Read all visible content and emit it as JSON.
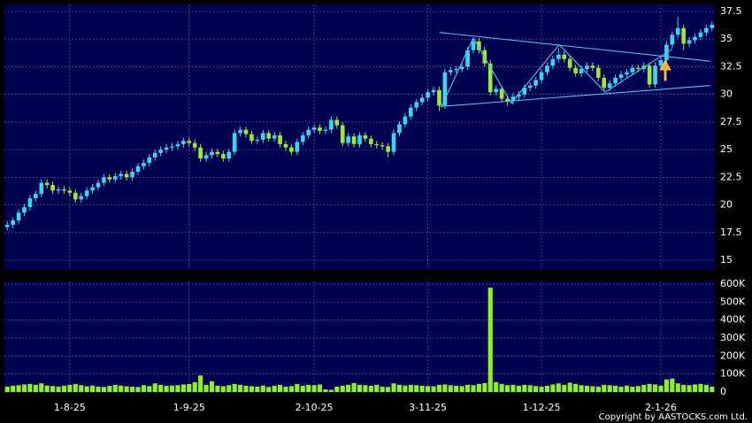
{
  "chart_data": [
    {
      "type": "candlestick",
      "background": "#000050",
      "up_color": "#3ad4f4",
      "down_color": "#9be83a",
      "grid": true,
      "xlim": [
        -0.5,
        124.5
      ],
      "ylim": [
        14.12,
        38.14
      ],
      "yticks": [
        15,
        17.5,
        20,
        22.5,
        25,
        27.5,
        30,
        32.5,
        35,
        37.5
      ],
      "open": [
        18.0,
        18.2,
        18.6,
        19.3,
        19.8,
        20.6,
        21.0,
        22.0,
        21.8,
        21.3,
        21.4,
        21.3,
        21.1,
        20.5,
        20.8,
        21.3,
        21.6,
        22.0,
        22.5,
        22.3,
        22.6,
        22.8,
        22.5,
        23.0,
        23.5,
        23.8,
        24.3,
        24.7,
        25.0,
        25.2,
        25.3,
        25.5,
        25.8,
        25.6,
        25.2,
        24.2,
        24.5,
        24.8,
        24.6,
        24.2,
        24.8,
        26.5,
        26.8,
        26.4,
        25.8,
        25.9,
        26.5,
        26.0,
        26.3,
        25.5,
        25.2,
        24.8,
        25.7,
        26.3,
        26.8,
        27.0,
        26.7,
        26.8,
        27.7,
        27.2,
        25.6,
        26.2,
        25.5,
        26.3,
        26.0,
        25.5,
        25.4,
        25.3,
        24.8,
        26.5,
        27.3,
        28.0,
        28.8,
        29.3,
        29.7,
        30.2,
        30.4,
        29.0,
        32.0,
        32.2,
        32.3,
        32.5,
        34.0,
        34.8,
        34.0,
        32.8,
        30.2,
        30.5,
        29.6,
        29.4,
        29.8,
        30.0,
        30.6,
        30.8,
        31.3,
        32.0,
        32.6,
        33.2,
        33.6,
        33.2,
        32.4,
        31.9,
        32.3,
        32.6,
        32.4,
        31.5,
        30.6,
        31.0,
        31.5,
        31.8,
        32.0,
        32.4,
        32.3,
        32.6,
        30.9,
        32.6,
        33.1,
        34.5,
        35.4,
        36.0,
        34.6,
        34.9,
        35.2,
        35.6,
        36.0
      ],
      "high": [
        18.5,
        18.9,
        19.6,
        20.1,
        20.9,
        21.3,
        22.3,
        22.3,
        22.1,
        21.7,
        21.7,
        21.6,
        21.4,
        21.1,
        21.6,
        21.9,
        22.3,
        22.8,
        22.8,
        22.9,
        23.1,
        23.1,
        23.3,
        23.8,
        24.1,
        24.6,
        25.0,
        25.3,
        25.5,
        25.6,
        25.8,
        26.1,
        26.1,
        25.9,
        25.5,
        24.8,
        25.1,
        25.1,
        24.9,
        25.1,
        26.8,
        27.1,
        27.1,
        26.7,
        26.2,
        26.8,
        26.8,
        26.6,
        26.6,
        25.8,
        25.5,
        26.0,
        26.6,
        27.1,
        27.3,
        27.3,
        27.1,
        28.0,
        28.0,
        27.5,
        26.5,
        26.5,
        26.6,
        26.6,
        26.3,
        25.8,
        25.7,
        25.6,
        26.8,
        27.6,
        28.3,
        29.1,
        29.6,
        30.0,
        30.5,
        30.7,
        30.7,
        32.3,
        32.5,
        32.6,
        32.8,
        34.3,
        35.1,
        35.1,
        34.3,
        33.1,
        30.8,
        30.8,
        29.9,
        30.1,
        30.3,
        30.9,
        31.1,
        31.6,
        32.3,
        32.9,
        33.5,
        34.2,
        33.9,
        33.5,
        32.7,
        32.6,
        32.9,
        32.9,
        32.7,
        31.8,
        31.3,
        31.8,
        32.1,
        32.3,
        32.7,
        32.7,
        32.9,
        32.9,
        32.9,
        33.4,
        34.8,
        35.7,
        37.0,
        36.3,
        35.2,
        35.5,
        35.9,
        36.3,
        36.6
      ],
      "low": [
        17.7,
        17.9,
        18.3,
        19.0,
        19.5,
        20.3,
        20.7,
        21.5,
        21.0,
        21.0,
        21.0,
        20.8,
        20.2,
        20.2,
        20.5,
        21.0,
        21.3,
        21.7,
        22.0,
        22.0,
        22.3,
        22.2,
        22.2,
        22.7,
        23.2,
        23.5,
        24.0,
        24.4,
        24.7,
        24.9,
        25.0,
        25.2,
        25.3,
        24.9,
        23.9,
        23.9,
        24.2,
        24.3,
        23.9,
        23.9,
        24.5,
        26.2,
        26.1,
        25.5,
        25.5,
        25.6,
        25.7,
        25.7,
        25.2,
        24.9,
        24.5,
        24.5,
        25.4,
        26.0,
        26.5,
        26.4,
        26.4,
        26.5,
        26.9,
        25.3,
        25.3,
        25.2,
        25.2,
        25.7,
        25.2,
        25.1,
        25.0,
        24.3,
        24.5,
        26.2,
        27.0,
        27.7,
        28.5,
        29.0,
        29.4,
        29.9,
        28.5,
        28.7,
        31.7,
        31.9,
        32.0,
        32.2,
        33.7,
        33.7,
        32.5,
        29.9,
        29.9,
        29.3,
        29.0,
        29.1,
        29.5,
        29.7,
        30.3,
        30.5,
        31.0,
        31.7,
        32.3,
        32.9,
        32.9,
        32.1,
        31.6,
        31.6,
        32.0,
        32.1,
        31.2,
        30.3,
        30.3,
        30.7,
        31.2,
        31.5,
        31.7,
        32.0,
        32.0,
        30.6,
        30.6,
        32.3,
        32.8,
        34.2,
        35.1,
        34.0,
        34.3,
        34.6,
        34.9,
        35.3,
        35.7
      ],
      "close": [
        18.2,
        18.6,
        19.3,
        19.8,
        20.6,
        21.0,
        22.0,
        21.8,
        21.3,
        21.4,
        21.3,
        21.1,
        20.5,
        20.8,
        21.3,
        21.6,
        22.0,
        22.5,
        22.3,
        22.6,
        22.8,
        22.5,
        23.0,
        23.5,
        23.8,
        24.3,
        24.7,
        25.0,
        25.2,
        25.3,
        25.5,
        25.8,
        25.6,
        25.2,
        24.2,
        24.5,
        24.8,
        24.6,
        24.2,
        24.8,
        26.5,
        26.8,
        26.4,
        25.8,
        25.9,
        26.5,
        26.0,
        26.3,
        25.5,
        25.2,
        24.8,
        25.7,
        26.3,
        26.8,
        27.0,
        26.7,
        26.8,
        27.7,
        27.2,
        25.6,
        26.2,
        25.5,
        26.3,
        26.0,
        25.5,
        25.4,
        25.3,
        24.8,
        26.5,
        27.3,
        28.0,
        28.8,
        29.3,
        29.7,
        30.2,
        30.4,
        29.0,
        32.0,
        32.2,
        32.3,
        32.5,
        34.0,
        34.8,
        34.0,
        32.8,
        30.2,
        30.5,
        29.6,
        29.4,
        29.8,
        30.0,
        30.6,
        30.8,
        31.3,
        32.0,
        32.6,
        33.2,
        33.6,
        33.2,
        32.4,
        31.9,
        32.3,
        32.6,
        32.4,
        31.5,
        30.6,
        31.0,
        31.5,
        31.8,
        32.0,
        32.4,
        32.3,
        32.6,
        30.9,
        32.6,
        33.1,
        34.5,
        35.4,
        36.0,
        34.6,
        34.9,
        35.2,
        35.6,
        36.0,
        36.3
      ],
      "trendline_color": "#4fc3f0",
      "trendlines": [
        {
          "x": [
            76.1,
            123.7
          ],
          "y": [
            35.6,
            33.0
          ]
        },
        {
          "x": [
            76.1,
            123.7
          ],
          "y": [
            28.9,
            30.8
          ]
        },
        {
          "x": [
            76.4,
            82.0,
            88.7,
            97.1,
            105.2,
            117.0
          ],
          "y": [
            28.9,
            35.1,
            29.2,
            34.5,
            30.2,
            34.1
          ]
        }
      ]
    },
    {
      "type": "bar",
      "background": "#000050",
      "color": "#8ef02a",
      "grid": true,
      "xlim": [
        -0.5,
        124.5
      ],
      "ylim": [
        0,
        615000
      ],
      "xticks": [
        {
          "value": 11,
          "label": "1-8-25"
        },
        {
          "value": 32,
          "label": "1-9-25"
        },
        {
          "value": 54,
          "label": "2-10-25"
        },
        {
          "value": 74,
          "label": "3-11-25"
        },
        {
          "value": 94,
          "label": "1-12-25"
        },
        {
          "value": 115,
          "label": "2-1-26"
        }
      ],
      "yticks": [
        0,
        {
          "value": 100000,
          "label": "100K"
        },
        {
          "value": 200000,
          "label": "200K"
        },
        {
          "value": 300000,
          "label": "300K"
        },
        {
          "value": 400000,
          "label": "400K"
        },
        {
          "value": 500000,
          "label": "500K"
        },
        {
          "value": 600000,
          "label": "600K"
        }
      ],
      "values": [
        30000,
        35000,
        38000,
        42000,
        45000,
        40000,
        48000,
        36000,
        33000,
        30000,
        35000,
        40000,
        45000,
        38000,
        32000,
        36000,
        30000,
        28000,
        34000,
        40000,
        36000,
        32000,
        30000,
        28000,
        38000,
        33000,
        48000,
        40000,
        35000,
        36000,
        38000,
        42000,
        45000,
        55000,
        92000,
        40000,
        60000,
        35000,
        32000,
        38000,
        45000,
        40000,
        35000,
        32000,
        30000,
        36000,
        28000,
        35000,
        40000,
        30000,
        33000,
        45000,
        35000,
        40000,
        38000,
        42000,
        15000,
        12000,
        30000,
        35000,
        40000,
        50000,
        40000,
        38000,
        35000,
        40000,
        30000,
        28000,
        48000,
        40000,
        36000,
        40000,
        38000,
        35000,
        33000,
        32000,
        40000,
        42000,
        38000,
        35000,
        33000,
        40000,
        38000,
        45000,
        50000,
        580000,
        55000,
        45000,
        38000,
        40000,
        35000,
        40000,
        38000,
        33000,
        30000,
        35000,
        42000,
        48000,
        40000,
        52000,
        45000,
        38000,
        35000,
        32000,
        30000,
        40000,
        38000,
        35000,
        30000,
        36000,
        30000,
        33000,
        40000,
        45000,
        42000,
        35000,
        70000,
        75000,
        48000,
        40000,
        38000,
        42000,
        45000,
        40000,
        30000
      ]
    },
    {
      "type": "text",
      "copyright": "Copyright by AASTOCKS.com Ltd."
    }
  ]
}
